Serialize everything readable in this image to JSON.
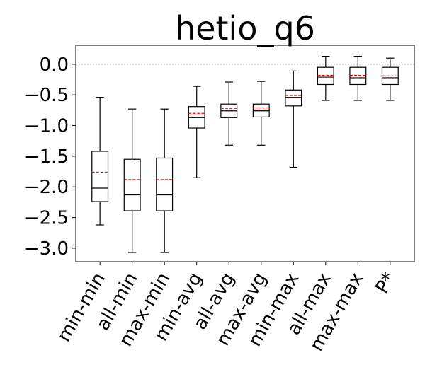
{
  "chart_data": {
    "type": "box",
    "title": "hetio_q6",
    "xlabel": "",
    "ylabel": "",
    "ylim": [
      -3.22,
      0.31
    ],
    "yticks": [
      0.0,
      -0.5,
      -1.0,
      -1.5,
      -2.0,
      -2.5,
      -3.0
    ],
    "ytick_labels": [
      "0.0",
      "−0.5",
      "−1.0",
      "−1.5",
      "−2.0",
      "−2.5",
      "−3.0"
    ],
    "reference_line": 0.0,
    "grid": false,
    "categories": [
      "min-min",
      "all-min",
      "max-min",
      "min-avg",
      "all-avg",
      "max-avg",
      "min-max",
      "all-max",
      "max-max",
      "P*"
    ],
    "boxes": [
      {
        "whisker_low": -2.62,
        "q1": -2.24,
        "median": -2.02,
        "q3": -1.42,
        "whisker_high": -0.54,
        "mean": -1.76
      },
      {
        "whisker_low": -3.07,
        "q1": -2.39,
        "median": -2.13,
        "q3": -1.55,
        "whisker_high": -0.73,
        "mean": -1.88
      },
      {
        "whisker_low": -3.07,
        "q1": -2.39,
        "median": -2.13,
        "q3": -1.53,
        "whisker_high": -0.73,
        "mean": -1.88
      },
      {
        "whisker_low": -1.85,
        "q1": -1.04,
        "median": -0.87,
        "q3": -0.69,
        "whisker_high": -0.36,
        "mean": -0.8
      },
      {
        "whisker_low": -1.32,
        "q1": -0.87,
        "median": -0.76,
        "q3": -0.65,
        "whisker_high": -0.29,
        "mean": -0.72
      },
      {
        "whisker_low": -1.32,
        "q1": -0.86,
        "median": -0.76,
        "q3": -0.65,
        "whisker_high": -0.28,
        "mean": -0.71
      },
      {
        "whisker_low": -1.68,
        "q1": -0.68,
        "median": -0.54,
        "q3": -0.42,
        "whisker_high": -0.11,
        "mean": -0.51
      },
      {
        "whisker_low": -0.59,
        "q1": -0.33,
        "median": -0.21,
        "q3": -0.05,
        "whisker_high": 0.13,
        "mean": -0.18
      },
      {
        "whisker_low": -0.59,
        "q1": -0.33,
        "median": -0.22,
        "q3": -0.05,
        "whisker_high": 0.13,
        "mean": -0.18
      },
      {
        "whisker_low": -0.59,
        "q1": -0.33,
        "median": -0.22,
        "q3": -0.05,
        "whisker_high": 0.1,
        "mean": -0.19
      }
    ],
    "colors": {
      "box": "#000000",
      "median": "#000000",
      "mean": "#ff0000",
      "reference_line": "#808080"
    }
  }
}
